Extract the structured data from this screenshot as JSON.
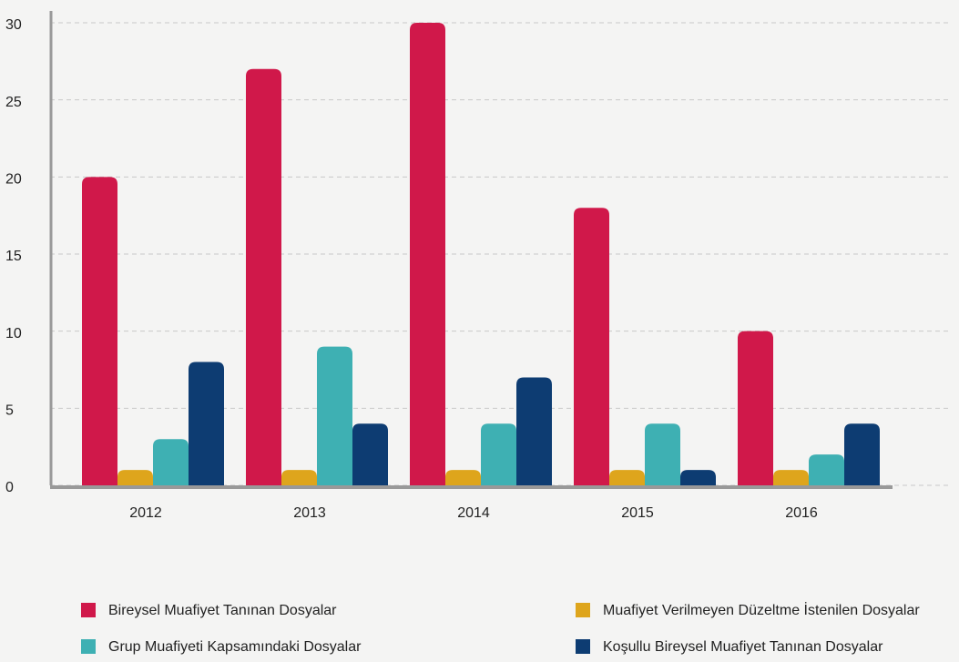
{
  "chart_data": {
    "type": "bar",
    "categories": [
      "2012",
      "2013",
      "2014",
      "2015",
      "2016"
    ],
    "series": [
      {
        "name": "Bireysel Muafiyet Tanınan Dosyalar",
        "color": "#d0184a",
        "values": [
          20,
          27,
          30,
          18,
          10
        ]
      },
      {
        "name": "Muafiyet Verilmeyen Düzeltme İstenilen Dosyalar",
        "color": "#dea51c",
        "values": [
          1,
          1,
          1,
          1,
          1
        ]
      },
      {
        "name": "Grup Muafiyeti Kapsamındaki Dosyalar",
        "color": "#3eb0b3",
        "values": [
          3,
          9,
          4,
          4,
          2
        ]
      },
      {
        "name": "Koşullu Bireysel Muafiyet Tanınan Dosyalar",
        "color": "#0d3c72",
        "values": [
          8,
          4,
          7,
          1,
          4
        ]
      }
    ],
    "ylim": [
      0,
      30
    ],
    "yticks": [
      0,
      5,
      10,
      15,
      20,
      25,
      30
    ],
    "grid": true
  }
}
